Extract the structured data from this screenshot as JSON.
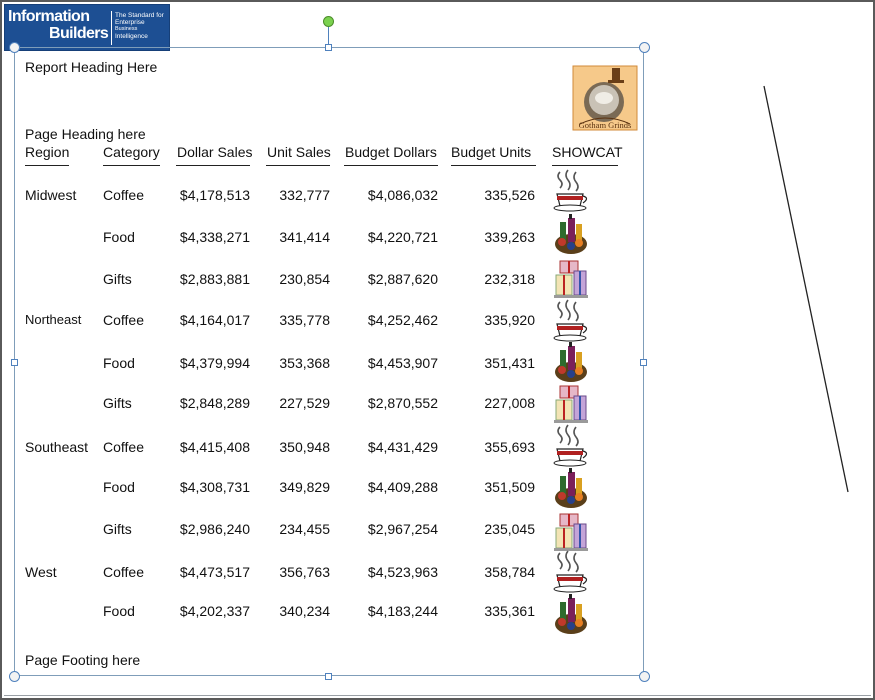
{
  "logo": {
    "word1": "Information",
    "word2": "Builders",
    "tagline": [
      "The Standard for",
      "Enterprise",
      "Business",
      "Intelligence"
    ]
  },
  "report": {
    "heading": "Report Heading Here",
    "page_heading": "Page Heading here",
    "page_footing": "Page Footing here",
    "header_image_name": "gotham-grinds-logo",
    "header_image_text": "Gotham Grinds",
    "columns": [
      "Region",
      "Category",
      "Dollar Sales",
      "Unit Sales",
      "Budget Dollars",
      "Budget Units",
      "SHOWCAT"
    ],
    "rows": [
      {
        "region": "Midwest",
        "category": "Coffee",
        "dollar_sales": "$4,178,513",
        "unit_sales": "332,777",
        "budget_dollars": "$4,086,032",
        "budget_units": "335,526",
        "icon": "coffee-cup-icon"
      },
      {
        "region": "",
        "category": "Food",
        "dollar_sales": "$4,338,271",
        "unit_sales": "341,414",
        "budget_dollars": "$4,220,721",
        "budget_units": "339,263",
        "icon": "food-basket-icon"
      },
      {
        "region": "",
        "category": "Gifts",
        "dollar_sales": "$2,883,881",
        "unit_sales": "230,854",
        "budget_dollars": "$2,887,620",
        "budget_units": "232,318",
        "icon": "gift-boxes-icon"
      },
      {
        "region": "Northeast",
        "category": "Coffee",
        "dollar_sales": "$4,164,017",
        "unit_sales": "335,778",
        "budget_dollars": "$4,252,462",
        "budget_units": "335,920",
        "icon": "coffee-cup-icon"
      },
      {
        "region": "",
        "category": "Food",
        "dollar_sales": "$4,379,994",
        "unit_sales": "353,368",
        "budget_dollars": "$4,453,907",
        "budget_units": "351,431",
        "icon": "food-basket-icon"
      },
      {
        "region": "",
        "category": "Gifts",
        "dollar_sales": "$2,848,289",
        "unit_sales": "227,529",
        "budget_dollars": "$2,870,552",
        "budget_units": "227,008",
        "icon": "gift-boxes-icon"
      },
      {
        "region": "Southeast",
        "category": "Coffee",
        "dollar_sales": "$4,415,408",
        "unit_sales": "350,948",
        "budget_dollars": "$4,431,429",
        "budget_units": "355,693",
        "icon": "coffee-cup-icon"
      },
      {
        "region": "",
        "category": "Food",
        "dollar_sales": "$4,308,731",
        "unit_sales": "349,829",
        "budget_dollars": "$4,409,288",
        "budget_units": "351,509",
        "icon": "food-basket-icon"
      },
      {
        "region": "",
        "category": "Gifts",
        "dollar_sales": "$2,986,240",
        "unit_sales": "234,455",
        "budget_dollars": "$2,967,254",
        "budget_units": "235,045",
        "icon": "gift-boxes-icon"
      },
      {
        "region": "West",
        "category": "Coffee",
        "dollar_sales": "$4,473,517",
        "unit_sales": "356,763",
        "budget_dollars": "$4,523,963",
        "budget_units": "358,784",
        "icon": "coffee-cup-icon"
      },
      {
        "region": "",
        "category": "Food",
        "dollar_sales": "$4,202,337",
        "unit_sales": "340,234",
        "budget_dollars": "$4,183,244",
        "budget_units": "335,361",
        "icon": "food-basket-icon"
      }
    ]
  },
  "colors": {
    "logo_bg": "#1d4f93",
    "selection": "#4f81bd",
    "rotate_handle": "#7bd14f"
  }
}
